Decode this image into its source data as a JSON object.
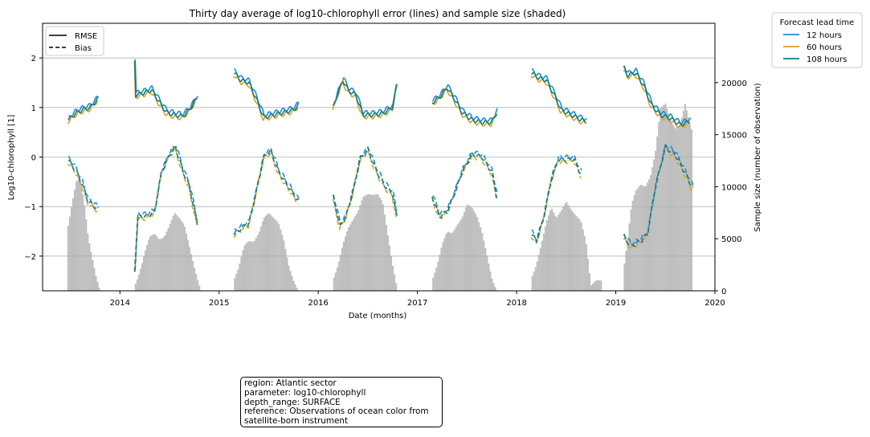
{
  "chart_data": {
    "type": "line",
    "title": "Thirty day average of log10-chlorophyll error (lines) and sample size (shaded)",
    "xlabel": "Date (months)",
    "ylabel": "Log10-chlorophyll [1]",
    "ylabel_right": "Sample size (number of observation)",
    "xlim": [
      2013.22,
      2020.0
    ],
    "ylim": [
      -2.7,
      2.7
    ],
    "ylim_right": [
      0,
      25700
    ],
    "x_ticks": [
      2014,
      2015,
      2016,
      2017,
      2018,
      2019,
      2020
    ],
    "x_tick_labels": [
      "2014",
      "2015",
      "2016",
      "2017",
      "2018",
      "2019",
      "2020"
    ],
    "y_ticks": [
      2,
      1,
      0,
      -1,
      -2
    ],
    "y_tick_labels": [
      "2",
      "1",
      "0",
      "−1",
      "−2"
    ],
    "y_right_ticks": [
      0,
      5000,
      10000,
      15000,
      20000
    ],
    "y_right_tick_labels": [
      "0",
      "5000",
      "10000",
      "15000",
      "20000"
    ],
    "grid": "horizontal",
    "style_legend": {
      "entries": [
        {
          "label": "RMSE",
          "style": "solid"
        },
        {
          "label": "Bias",
          "style": "dashed"
        }
      ],
      "position": "upper-left"
    },
    "lead_time_legend": {
      "title": "Forecast lead time",
      "position": "outside-upper-right",
      "entries": [
        {
          "label": "12 hours",
          "color": "#1f8ae0"
        },
        {
          "label": "60 hours",
          "color": "#e0a020"
        },
        {
          "label": "108 hours",
          "color": "#0f7f7f"
        }
      ]
    },
    "series_colors": {
      "12": "#1f8ae0",
      "60": "#e0a020",
      "108": "#0f7f7f"
    },
    "shaded_color": "#bebebe",
    "rmse_segments": [
      {
        "x": [
          2013.48,
          2013.55,
          2013.62,
          2013.7,
          2013.78
        ],
        "y": [
          0.75,
          0.88,
          0.95,
          1.0,
          1.18
        ]
      },
      {
        "x": [
          2014.15,
          2014.16,
          2014.25,
          2014.32,
          2014.4,
          2014.47,
          2014.55,
          2014.63,
          2014.7,
          2014.78
        ],
        "y": [
          1.95,
          1.25,
          1.3,
          1.35,
          1.1,
          0.9,
          0.85,
          0.82,
          0.95,
          1.2
        ]
      },
      {
        "x": [
          2015.15,
          2015.22,
          2015.3,
          2015.38,
          2015.45,
          2015.55,
          2015.65,
          2015.75,
          2015.8
        ],
        "y": [
          1.7,
          1.55,
          1.5,
          1.15,
          0.8,
          0.85,
          0.9,
          0.95,
          1.05
        ]
      },
      {
        "x": [
          2016.15,
          2016.2,
          2016.25,
          2016.3,
          2016.38,
          2016.45,
          2016.55,
          2016.65,
          2016.75,
          2016.79
        ],
        "y": [
          1.0,
          1.3,
          1.55,
          1.35,
          1.25,
          0.85,
          0.85,
          0.88,
          1.0,
          1.45
        ]
      },
      {
        "x": [
          2017.15,
          2017.22,
          2017.3,
          2017.38,
          2017.45,
          2017.55,
          2017.65,
          2017.75,
          2017.8
        ],
        "y": [
          1.1,
          1.2,
          1.4,
          1.15,
          0.9,
          0.75,
          0.7,
          0.7,
          0.9
        ]
      },
      {
        "x": [
          2018.15,
          2018.22,
          2018.3,
          2018.38,
          2018.45,
          2018.55,
          2018.65,
          2018.7
        ],
        "y": [
          1.7,
          1.6,
          1.55,
          1.25,
          0.95,
          0.85,
          0.75,
          0.72
        ]
      },
      {
        "x": [
          2019.08,
          2019.12,
          2019.2,
          2019.28,
          2019.36,
          2019.45,
          2019.55,
          2019.65,
          2019.75
        ],
        "y": [
          1.8,
          1.65,
          1.7,
          1.45,
          1.05,
          0.85,
          0.78,
          0.65,
          0.72
        ]
      }
    ],
    "bias_segments": [
      {
        "x": [
          2013.48,
          2013.55,
          2013.62,
          2013.68,
          2013.78
        ],
        "y": [
          -0.07,
          -0.25,
          -0.55,
          -0.9,
          -1.05
        ]
      },
      {
        "x": [
          2014.15,
          2014.18,
          2014.27,
          2014.35,
          2014.42,
          2014.5,
          2014.56,
          2014.63,
          2014.7,
          2014.78
        ],
        "y": [
          -2.3,
          -1.2,
          -1.2,
          -1.1,
          -0.3,
          0.05,
          0.2,
          -0.25,
          -0.6,
          -1.35
        ]
      },
      {
        "x": [
          2015.15,
          2015.25,
          2015.3,
          2015.38,
          2015.45,
          2015.52,
          2015.6,
          2015.7,
          2015.8
        ],
        "y": [
          -1.55,
          -1.4,
          -1.35,
          -0.65,
          0.0,
          0.12,
          -0.3,
          -0.6,
          -0.9
        ]
      },
      {
        "x": [
          2016.15,
          2016.22,
          2016.28,
          2016.35,
          2016.42,
          2016.5,
          2016.58,
          2016.66,
          2016.75,
          2016.79
        ],
        "y": [
          -0.8,
          -1.4,
          -1.2,
          -0.7,
          -0.05,
          0.15,
          -0.25,
          -0.55,
          -0.75,
          -1.2
        ]
      },
      {
        "x": [
          2017.15,
          2017.22,
          2017.3,
          2017.38,
          2017.45,
          2017.55,
          2017.65,
          2017.75,
          2017.8
        ],
        "y": [
          -0.8,
          -1.2,
          -1.1,
          -0.7,
          -0.3,
          0.05,
          0.0,
          -0.3,
          -0.8
        ]
      },
      {
        "x": [
          2018.15,
          2018.2,
          2018.27,
          2018.35,
          2018.42,
          2018.5,
          2018.58,
          2018.65
        ],
        "y": [
          -1.55,
          -1.7,
          -1.25,
          -0.45,
          -0.05,
          -0.05,
          -0.05,
          -0.35
        ]
      },
      {
        "x": [
          2019.08,
          2019.15,
          2019.25,
          2019.32,
          2019.4,
          2019.5,
          2019.6,
          2019.72,
          2019.78
        ],
        "y": [
          -1.6,
          -1.8,
          -1.7,
          -1.55,
          -0.6,
          0.2,
          0.05,
          -0.4,
          -0.65
        ]
      }
    ],
    "sample_size_segments": [
      {
        "x": [
          2013.47,
          2013.52,
          2013.56,
          2013.6,
          2013.64,
          2013.68,
          2013.72,
          2013.76,
          2013.8
        ],
        "y": [
          5800,
          8500,
          10500,
          10800,
          8500,
          5200,
          3200,
          1400,
          0
        ]
      },
      {
        "x": [
          2014.15,
          2014.18,
          2014.22,
          2014.26,
          2014.3,
          2014.35,
          2014.4,
          2014.45,
          2014.5,
          2014.55,
          2014.6,
          2014.65,
          2014.7,
          2014.75,
          2014.8
        ],
        "y": [
          500,
          1200,
          2500,
          4000,
          5200,
          5500,
          4900,
          5200,
          6300,
          7500,
          7000,
          6300,
          4300,
          2300,
          500
        ]
      },
      {
        "x": [
          2015.15,
          2015.2,
          2015.25,
          2015.3,
          2015.35,
          2015.4,
          2015.45,
          2015.5,
          2015.55,
          2015.6,
          2015.65,
          2015.7,
          2015.75,
          2015.8
        ],
        "y": [
          1000,
          2300,
          4300,
          4800,
          4700,
          5500,
          7000,
          7500,
          7000,
          6500,
          5000,
          2500,
          1000,
          0
        ]
      },
      {
        "x": [
          2016.15,
          2016.2,
          2016.25,
          2016.3,
          2016.35,
          2016.4,
          2016.45,
          2016.5,
          2016.55,
          2016.6,
          2016.65,
          2016.7,
          2016.75,
          2016.8
        ],
        "y": [
          1000,
          2500,
          4500,
          6000,
          6800,
          7600,
          9000,
          9300,
          9200,
          9300,
          8500,
          5500,
          2500,
          0
        ]
      },
      {
        "x": [
          2017.15,
          2017.2,
          2017.25,
          2017.3,
          2017.35,
          2017.4,
          2017.45,
          2017.5,
          2017.55,
          2017.6,
          2017.65,
          2017.7,
          2017.75,
          2017.8
        ],
        "y": [
          1000,
          2500,
          4500,
          5700,
          5500,
          6300,
          7000,
          8300,
          8000,
          7200,
          5700,
          3500,
          1200,
          0
        ]
      },
      {
        "x": [
          2018.15,
          2018.2,
          2018.25,
          2018.3,
          2018.35,
          2018.4,
          2018.45,
          2018.5,
          2018.55,
          2018.6,
          2018.65,
          2018.7,
          2018.75,
          2018.8,
          2018.85
        ],
        "y": [
          1200,
          2500,
          4500,
          6600,
          8000,
          7000,
          7700,
          8600,
          7800,
          7200,
          6700,
          4700,
          500,
          1000,
          1000
        ]
      },
      {
        "x": [
          2019.08,
          2019.12,
          2019.16,
          2019.2,
          2019.25,
          2019.3,
          2019.35,
          2019.4,
          2019.45,
          2019.5,
          2019.55,
          2019.6,
          2019.65,
          2019.7,
          2019.76
        ],
        "y": [
          2000,
          5000,
          8300,
          9600,
          10200,
          10000,
          11000,
          13300,
          17500,
          18000,
          16500,
          15600,
          16000,
          18000,
          15500
        ]
      }
    ]
  },
  "info_box": {
    "region": "region: Atlantic sector",
    "parameter": "parameter: log10-chlorophyll",
    "depth_range": "depth_range: SURFACE",
    "reference": "reference: Observations of ocean color from satellite-born instrument"
  }
}
